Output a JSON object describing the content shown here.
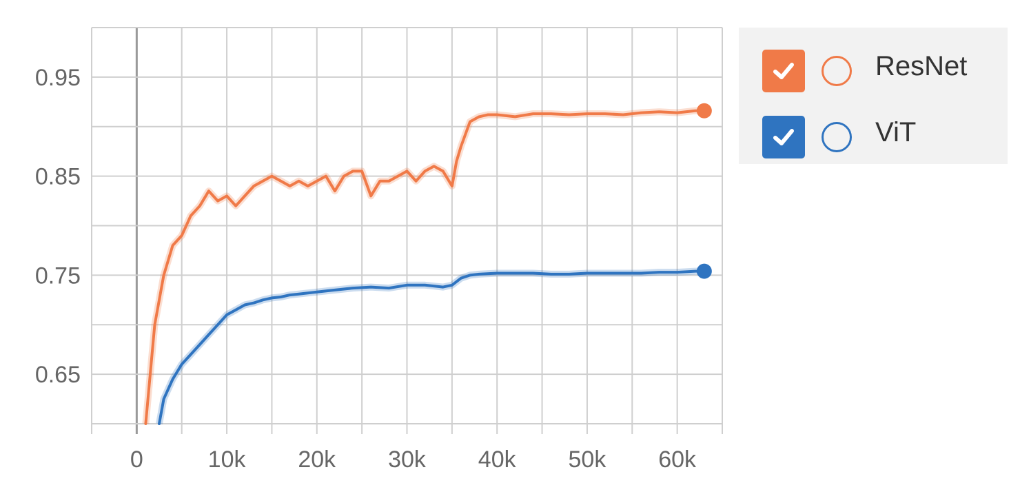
{
  "chart_data": {
    "type": "line",
    "title": "",
    "xlabel": "",
    "ylabel": "",
    "xlim": [
      -5000,
      65000
    ],
    "ylim": [
      0.6,
      1.0
    ],
    "x_ticks": [
      0,
      10000,
      20000,
      30000,
      40000,
      50000,
      60000
    ],
    "x_tick_labels": [
      "0",
      "10k",
      "20k",
      "30k",
      "40k",
      "50k",
      "60k"
    ],
    "y_ticks": [
      0.65,
      0.75,
      0.85,
      0.95
    ],
    "y_tick_labels": [
      "0.65",
      "0.75",
      "0.85",
      "0.95"
    ],
    "grid": true,
    "legend_placement": "right",
    "series": [
      {
        "name": "ResNet",
        "color": "#f07a48",
        "x": [
          1000,
          2000,
          3000,
          4000,
          5000,
          6000,
          7000,
          8000,
          9000,
          10000,
          11000,
          12000,
          13000,
          14000,
          15000,
          16000,
          17000,
          18000,
          19000,
          20000,
          21000,
          22000,
          23000,
          24000,
          25000,
          26000,
          27000,
          28000,
          29000,
          30000,
          31000,
          32000,
          33000,
          34000,
          35000,
          35500,
          36000,
          37000,
          38000,
          39000,
          40000,
          42000,
          44000,
          46000,
          48000,
          50000,
          52000,
          54000,
          56000,
          58000,
          60000,
          62000,
          63000
        ],
        "values": [
          0.6,
          0.7,
          0.75,
          0.78,
          0.79,
          0.81,
          0.82,
          0.835,
          0.825,
          0.83,
          0.82,
          0.83,
          0.84,
          0.845,
          0.85,
          0.845,
          0.84,
          0.845,
          0.84,
          0.845,
          0.85,
          0.835,
          0.85,
          0.855,
          0.855,
          0.83,
          0.845,
          0.845,
          0.85,
          0.855,
          0.845,
          0.855,
          0.86,
          0.855,
          0.84,
          0.865,
          0.88,
          0.905,
          0.91,
          0.912,
          0.912,
          0.91,
          0.913,
          0.913,
          0.912,
          0.913,
          0.913,
          0.912,
          0.914,
          0.915,
          0.914,
          0.916,
          0.916
        ]
      },
      {
        "name": "ViT",
        "color": "#2f74c0",
        "x": [
          2500,
          3000,
          4000,
          5000,
          6000,
          7000,
          8000,
          9000,
          10000,
          11000,
          12000,
          13000,
          14000,
          15000,
          16000,
          17000,
          18000,
          20000,
          22000,
          24000,
          26000,
          28000,
          30000,
          32000,
          34000,
          35000,
          36000,
          37000,
          38000,
          40000,
          42000,
          44000,
          46000,
          48000,
          50000,
          52000,
          54000,
          56000,
          58000,
          60000,
          62000,
          63000
        ],
        "values": [
          0.6,
          0.625,
          0.645,
          0.66,
          0.67,
          0.68,
          0.69,
          0.7,
          0.71,
          0.715,
          0.72,
          0.722,
          0.725,
          0.727,
          0.728,
          0.73,
          0.731,
          0.733,
          0.735,
          0.737,
          0.738,
          0.737,
          0.74,
          0.74,
          0.738,
          0.74,
          0.747,
          0.75,
          0.751,
          0.752,
          0.752,
          0.752,
          0.751,
          0.751,
          0.752,
          0.752,
          0.752,
          0.752,
          0.753,
          0.753,
          0.754,
          0.754
        ]
      }
    ]
  },
  "legend": {
    "items": [
      {
        "label": "ResNet",
        "color": "#f07a48"
      },
      {
        "label": "ViT",
        "color": "#2f74c0"
      }
    ]
  }
}
